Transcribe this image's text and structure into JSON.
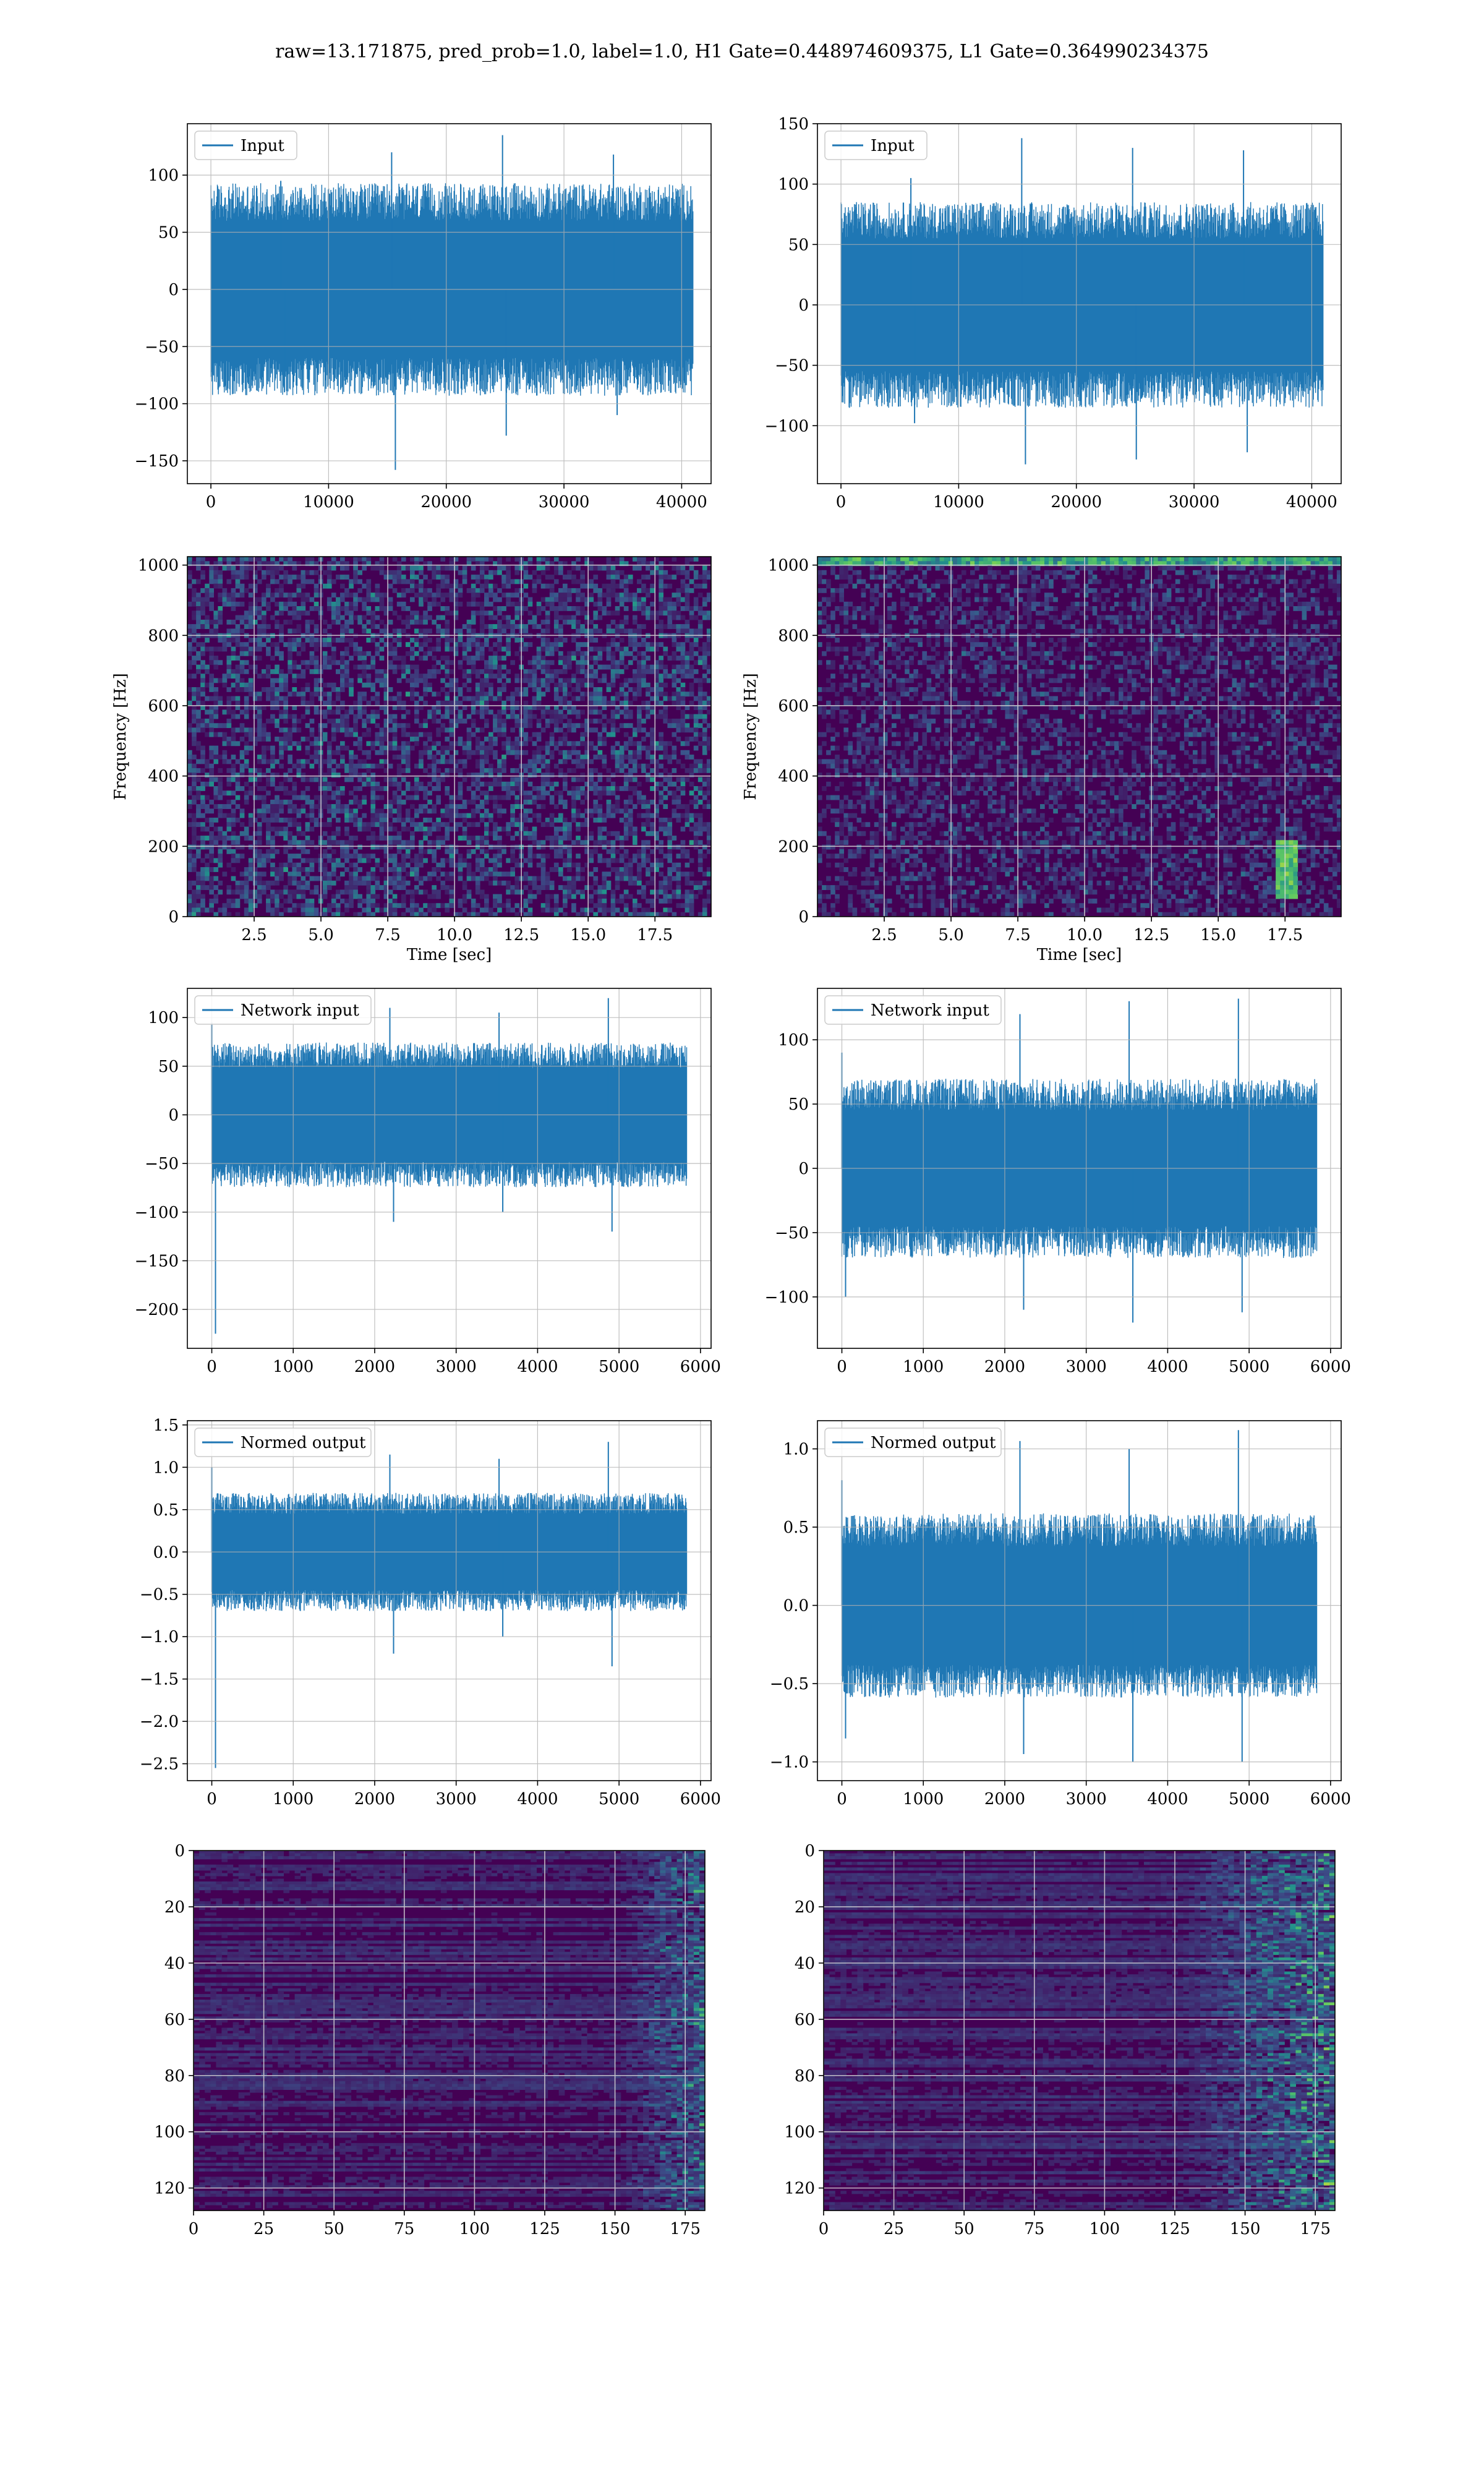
{
  "figure": {
    "title": "raw=13.171875, pred_prob=1.0, label=1.0, H1 Gate=0.448974609375, L1 Gate=0.364990234375"
  },
  "colors": {
    "trace": "#1f77b4",
    "grid": "#b0b0b0",
    "viridis_low": "#440154",
    "viridis_mid": "#3b528b",
    "viridis_high": "#21918c",
    "viridis_peak": "#5ec962"
  },
  "chart_data": [
    {
      "id": "h1-input",
      "type": "line",
      "legend": "Input",
      "xlabel": "",
      "ylabel": "",
      "xlim": [
        -2000,
        42500
      ],
      "ylim": [
        -170,
        145
      ],
      "xticks": [
        0,
        10000,
        20000,
        30000,
        40000
      ],
      "yticks": [
        -150,
        -100,
        -50,
        0,
        50,
        100
      ],
      "trace": {
        "x_start": 0,
        "x_end": 40960,
        "band_low": -60,
        "band_high": 60,
        "spikes_high": [
          95,
          120,
          135,
          118
        ],
        "spikes_low": [
          -90,
          -158,
          -128,
          -110
        ]
      }
    },
    {
      "id": "l1-input",
      "type": "line",
      "legend": "Input",
      "xlabel": "",
      "ylabel": "",
      "xlim": [
        -2000,
        42500
      ],
      "ylim": [
        -148,
        150
      ],
      "xticks": [
        0,
        10000,
        20000,
        30000,
        40000
      ],
      "yticks": [
        -100,
        -50,
        0,
        50,
        100,
        150
      ],
      "trace": {
        "x_start": 0,
        "x_end": 40960,
        "band_low": -55,
        "band_high": 55,
        "spikes_high": [
          105,
          138,
          130,
          128
        ],
        "spikes_low": [
          -98,
          -132,
          -128,
          -122
        ]
      }
    },
    {
      "id": "h1-spectrogram",
      "type": "heatmap",
      "xlabel": "Time [sec]",
      "ylabel": "Frequency [Hz]",
      "xlim": [
        0,
        19.6
      ],
      "ylim": [
        0,
        1024
      ],
      "xticks": [
        2.5,
        5.0,
        7.5,
        10.0,
        12.5,
        15.0,
        17.5
      ],
      "xtick_labels": [
        "2.5",
        "5.0",
        "7.5",
        "10.0",
        "12.5",
        "15.0",
        "17.5"
      ],
      "yticks": [
        0,
        200,
        400,
        600,
        800,
        1000
      ],
      "colormap": "viridis"
    },
    {
      "id": "l1-spectrogram",
      "type": "heatmap",
      "xlabel": "Time [sec]",
      "ylabel": "Frequency [Hz]",
      "xlim": [
        0,
        19.6
      ],
      "ylim": [
        0,
        1024
      ],
      "xticks": [
        2.5,
        5.0,
        7.5,
        10.0,
        12.5,
        15.0,
        17.5
      ],
      "xtick_labels": [
        "2.5",
        "5.0",
        "7.5",
        "10.0",
        "12.5",
        "15.0",
        "17.5"
      ],
      "yticks": [
        0,
        200,
        400,
        600,
        800,
        1000
      ],
      "colormap": "viridis"
    },
    {
      "id": "h1-network-input",
      "type": "line",
      "legend": "Network input",
      "xlabel": "",
      "ylabel": "",
      "xlim": [
        -300,
        6130
      ],
      "ylim": [
        -240,
        130
      ],
      "xticks": [
        0,
        1000,
        2000,
        3000,
        4000,
        5000,
        6000
      ],
      "yticks": [
        -200,
        -150,
        -100,
        -50,
        0,
        50,
        100
      ],
      "trace": {
        "x_start": 0,
        "x_end": 5830,
        "band_low": -48,
        "band_high": 48,
        "spikes_high": [
          95,
          110,
          105,
          120
        ],
        "spikes_low": [
          -225,
          -110,
          -100,
          -120
        ]
      }
    },
    {
      "id": "l1-network-input",
      "type": "line",
      "legend": "Network input",
      "xlabel": "",
      "ylabel": "",
      "xlim": [
        -300,
        6130
      ],
      "ylim": [
        -140,
        140
      ],
      "xticks": [
        0,
        1000,
        2000,
        3000,
        4000,
        5000,
        6000
      ],
      "yticks": [
        -100,
        -50,
        0,
        50,
        100
      ],
      "trace": {
        "x_start": 0,
        "x_end": 5830,
        "band_low": -45,
        "band_high": 45,
        "spikes_high": [
          90,
          120,
          130,
          132
        ],
        "spikes_low": [
          -100,
          -110,
          -120,
          -112
        ]
      }
    },
    {
      "id": "h1-normed-output",
      "type": "line",
      "legend": "Normed output",
      "xlabel": "",
      "ylabel": "",
      "xlim": [
        -300,
        6130
      ],
      "ylim": [
        -2.7,
        1.55
      ],
      "xticks": [
        0,
        1000,
        2000,
        3000,
        4000,
        5000,
        6000
      ],
      "yticks": [
        -2.5,
        -2.0,
        -1.5,
        -1.0,
        -0.5,
        0.0,
        0.5,
        1.0,
        1.5
      ],
      "ytick_labels": [
        "−2.5",
        "−2.0",
        "−1.5",
        "−1.0",
        "−0.5",
        "0.0",
        "0.5",
        "1.0",
        "1.5"
      ],
      "trace": {
        "x_start": 0,
        "x_end": 5830,
        "band_low": -0.45,
        "band_high": 0.45,
        "spikes_high": [
          1.0,
          1.15,
          1.1,
          1.3
        ],
        "spikes_low": [
          -2.55,
          -1.2,
          -1.0,
          -1.35
        ]
      }
    },
    {
      "id": "l1-normed-output",
      "type": "line",
      "legend": "Normed output",
      "xlabel": "",
      "ylabel": "",
      "xlim": [
        -300,
        6130
      ],
      "ylim": [
        -1.12,
        1.18
      ],
      "xticks": [
        0,
        1000,
        2000,
        3000,
        4000,
        5000,
        6000
      ],
      "yticks": [
        -1.0,
        -0.5,
        0.0,
        0.5,
        1.0
      ],
      "ytick_labels": [
        "−1.0",
        "−0.5",
        "0.0",
        "0.5",
        "1.0"
      ],
      "trace": {
        "x_start": 0,
        "x_end": 5830,
        "band_low": -0.38,
        "band_high": 0.38,
        "spikes_high": [
          0.8,
          1.05,
          1.0,
          1.12
        ],
        "spikes_low": [
          -0.85,
          -0.95,
          -1.0,
          -1.0
        ]
      }
    },
    {
      "id": "h1-feature-map",
      "type": "heatmap",
      "xlabel": "",
      "ylabel": "",
      "xlim": [
        0,
        182
      ],
      "ylim": [
        128,
        0
      ],
      "xticks": [
        0,
        25,
        50,
        75,
        100,
        125,
        150,
        175
      ],
      "yticks": [
        0,
        20,
        40,
        60,
        80,
        100,
        120
      ],
      "colormap": "viridis"
    },
    {
      "id": "l1-feature-map",
      "type": "heatmap",
      "xlabel": "",
      "ylabel": "",
      "xlim": [
        0,
        182
      ],
      "ylim": [
        128,
        0
      ],
      "xticks": [
        0,
        25,
        50,
        75,
        100,
        125,
        150,
        175
      ],
      "yticks": [
        0,
        20,
        40,
        60,
        80,
        100,
        120
      ],
      "colormap": "viridis"
    }
  ]
}
